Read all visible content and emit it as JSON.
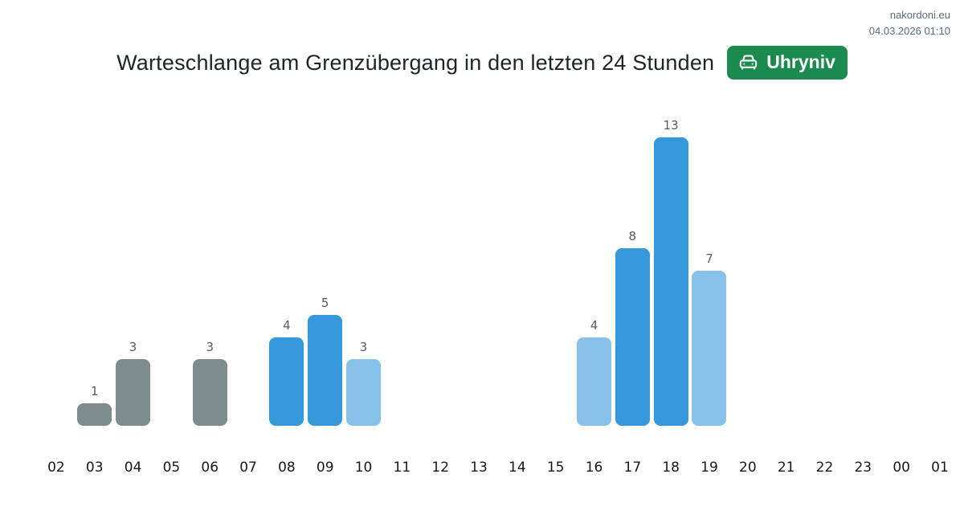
{
  "site_meta": {
    "site_name": "nakordoni.eu",
    "timestamp": "04.03.2026 01:10"
  },
  "header": {
    "title": "Warteschlange am Grenzübergang in den letzten 24 Stunden",
    "badge": {
      "label": "Uhryniv",
      "icon": "car-front-icon",
      "bg_color": "#1b8a4e",
      "text_color": "#ffffff"
    }
  },
  "chart_data": {
    "type": "bar",
    "title": "Warteschlange am Grenzübergang in den letzten 24 Stunden",
    "categories": [
      "02",
      "03",
      "04",
      "05",
      "06",
      "07",
      "08",
      "09",
      "10",
      "11",
      "12",
      "13",
      "14",
      "15",
      "16",
      "17",
      "18",
      "19",
      "20",
      "21",
      "22",
      "23",
      "00",
      "01"
    ],
    "values": [
      0,
      1,
      3,
      0,
      3,
      0,
      4,
      5,
      3,
      0,
      0,
      0,
      0,
      0,
      4,
      8,
      13,
      7,
      0,
      0,
      0,
      0,
      0,
      0
    ],
    "bar_color_roles": [
      "none",
      "gray",
      "gray",
      "none",
      "gray",
      "none",
      "blue",
      "blue",
      "lightblue",
      "none",
      "none",
      "none",
      "none",
      "none",
      "lightblue",
      "blue",
      "blue",
      "lightblue",
      "none",
      "none",
      "none",
      "none",
      "none",
      "none"
    ],
    "palette": {
      "gray": "#7f8c8d",
      "blue": "#3498db",
      "lightblue": "#85c1e9"
    },
    "value_label_color": "#555c63",
    "axis_label_color": "#16181a",
    "xlabel": "",
    "ylabel": "",
    "ylim": [
      0,
      13
    ],
    "grid": false,
    "legend": "none",
    "value_labels_shown": true
  }
}
